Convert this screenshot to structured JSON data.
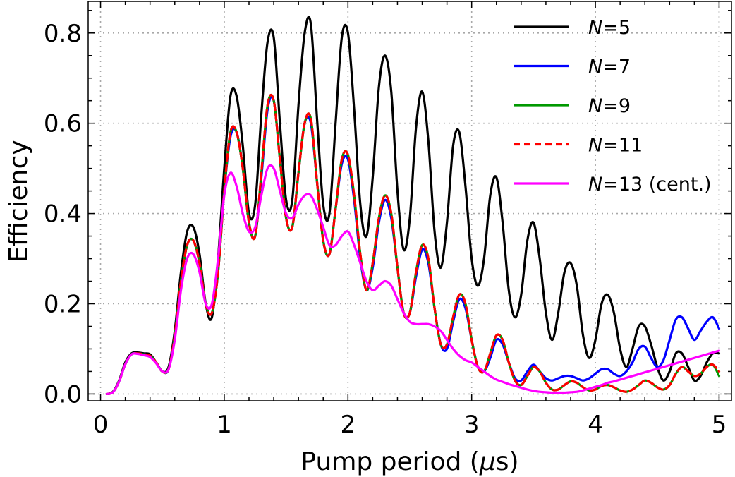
{
  "chart_data": {
    "type": "line",
    "title": "",
    "xlabel": "Pump period (",
    "xlabel_symbol": "μ",
    "xlabel_unit": "s)",
    "ylabel": "Efficiency",
    "xlim": [
      -0.1,
      5.1
    ],
    "ylim": [
      -0.015,
      0.87
    ],
    "xticks": [
      0,
      1,
      2,
      3,
      4,
      5
    ],
    "xtick_labels": [
      "0",
      "1",
      "2",
      "3",
      "4",
      "5"
    ],
    "yticks": [
      0.0,
      0.2,
      0.4,
      0.6,
      0.8
    ],
    "ytick_labels": [
      "0.0",
      "0.2",
      "0.4",
      "0.6",
      "0.8"
    ],
    "grid": true,
    "legend_position": "top-right",
    "x": [
      0.05,
      0.1,
      0.15,
      0.2,
      0.25,
      0.3,
      0.35,
      0.4,
      0.45,
      0.5,
      0.55,
      0.6,
      0.65,
      0.7,
      0.75,
      0.8,
      0.85,
      0.9,
      0.95,
      1.0,
      1.05,
      1.1,
      1.15,
      1.2,
      1.25,
      1.3,
      1.35,
      1.4,
      1.45,
      1.5,
      1.55,
      1.6,
      1.65,
      1.7,
      1.75,
      1.8,
      1.85,
      1.9,
      1.95,
      2.0,
      2.05,
      2.1,
      2.15,
      2.2,
      2.25,
      2.3,
      2.35,
      2.4,
      2.45,
      2.5,
      2.55,
      2.6,
      2.65,
      2.7,
      2.75,
      2.8,
      2.85,
      2.9,
      2.95,
      3.0,
      3.05,
      3.1,
      3.15,
      3.2,
      3.25,
      3.3,
      3.35,
      3.4,
      3.45,
      3.5,
      3.55,
      3.6,
      3.65,
      3.7,
      3.75,
      3.8,
      3.85,
      3.9,
      3.95,
      4.0,
      4.05,
      4.1,
      4.15,
      4.2,
      4.25,
      4.3,
      4.35,
      4.4,
      4.45,
      4.5,
      4.55,
      4.6,
      4.65,
      4.7,
      4.75,
      4.8,
      4.85,
      4.9,
      4.95,
      5.0
    ],
    "series": [
      {
        "name_italic": "N",
        "name_rest": "=5",
        "color": "#000000",
        "dash": "",
        "values": [
          0.0,
          0.005,
          0.03,
          0.07,
          0.09,
          0.092,
          0.09,
          0.088,
          0.07,
          0.05,
          0.06,
          0.14,
          0.27,
          0.36,
          0.37,
          0.31,
          0.2,
          0.17,
          0.3,
          0.5,
          0.66,
          0.66,
          0.55,
          0.4,
          0.42,
          0.62,
          0.78,
          0.79,
          0.6,
          0.43,
          0.43,
          0.64,
          0.8,
          0.82,
          0.61,
          0.42,
          0.4,
          0.6,
          0.79,
          0.8,
          0.63,
          0.42,
          0.35,
          0.48,
          0.68,
          0.75,
          0.67,
          0.45,
          0.32,
          0.39,
          0.59,
          0.67,
          0.56,
          0.36,
          0.28,
          0.38,
          0.55,
          0.58,
          0.46,
          0.3,
          0.24,
          0.3,
          0.44,
          0.48,
          0.38,
          0.23,
          0.17,
          0.22,
          0.34,
          0.38,
          0.3,
          0.18,
          0.12,
          0.18,
          0.27,
          0.29,
          0.24,
          0.13,
          0.08,
          0.12,
          0.2,
          0.22,
          0.18,
          0.1,
          0.06,
          0.1,
          0.15,
          0.15,
          0.11,
          0.06,
          0.03,
          0.05,
          0.09,
          0.09,
          0.06,
          0.03,
          0.04,
          0.07,
          0.09,
          0.09
        ]
      },
      {
        "name_italic": "N",
        "name_rest": "=7",
        "color": "#0000ff",
        "dash": "",
        "values": [
          0.0,
          0.004,
          0.028,
          0.066,
          0.088,
          0.09,
          0.088,
          0.085,
          0.07,
          0.05,
          0.055,
          0.13,
          0.25,
          0.33,
          0.34,
          0.29,
          0.2,
          0.18,
          0.27,
          0.45,
          0.57,
          0.58,
          0.5,
          0.38,
          0.35,
          0.48,
          0.63,
          0.65,
          0.52,
          0.39,
          0.37,
          0.49,
          0.6,
          0.6,
          0.47,
          0.34,
          0.31,
          0.41,
          0.51,
          0.52,
          0.43,
          0.3,
          0.23,
          0.28,
          0.38,
          0.43,
          0.39,
          0.28,
          0.18,
          0.18,
          0.26,
          0.32,
          0.29,
          0.19,
          0.11,
          0.1,
          0.16,
          0.21,
          0.19,
          0.12,
          0.06,
          0.05,
          0.08,
          0.12,
          0.11,
          0.07,
          0.035,
          0.03,
          0.05,
          0.065,
          0.05,
          0.035,
          0.03,
          0.035,
          0.04,
          0.04,
          0.035,
          0.03,
          0.035,
          0.045,
          0.055,
          0.055,
          0.045,
          0.04,
          0.05,
          0.07,
          0.1,
          0.105,
          0.08,
          0.06,
          0.075,
          0.12,
          0.165,
          0.17,
          0.145,
          0.12,
          0.14,
          0.16,
          0.17,
          0.145
        ]
      },
      {
        "name_italic": "N",
        "name_rest": "=9",
        "color": "#009900",
        "dash": "",
        "values": [
          0.0,
          0.004,
          0.028,
          0.066,
          0.088,
          0.09,
          0.088,
          0.085,
          0.07,
          0.05,
          0.055,
          0.13,
          0.25,
          0.33,
          0.34,
          0.29,
          0.2,
          0.18,
          0.27,
          0.45,
          0.58,
          0.58,
          0.5,
          0.38,
          0.35,
          0.49,
          0.64,
          0.65,
          0.52,
          0.39,
          0.37,
          0.49,
          0.6,
          0.61,
          0.47,
          0.34,
          0.31,
          0.41,
          0.52,
          0.53,
          0.44,
          0.31,
          0.23,
          0.29,
          0.39,
          0.44,
          0.4,
          0.28,
          0.18,
          0.18,
          0.27,
          0.33,
          0.3,
          0.19,
          0.11,
          0.11,
          0.17,
          0.22,
          0.2,
          0.12,
          0.06,
          0.05,
          0.09,
          0.13,
          0.12,
          0.07,
          0.03,
          0.02,
          0.04,
          0.06,
          0.05,
          0.025,
          0.01,
          0.01,
          0.02,
          0.028,
          0.025,
          0.015,
          0.008,
          0.01,
          0.018,
          0.02,
          0.015,
          0.008,
          0.005,
          0.01,
          0.02,
          0.03,
          0.025,
          0.015,
          0.01,
          0.02,
          0.045,
          0.06,
          0.05,
          0.04,
          0.045,
          0.06,
          0.065,
          0.04
        ]
      },
      {
        "name_italic": "N",
        "name_rest": "=11",
        "color": "#ff0000",
        "dash": "9 6",
        "values": [
          0.0,
          0.004,
          0.028,
          0.066,
          0.088,
          0.09,
          0.088,
          0.085,
          0.07,
          0.05,
          0.055,
          0.13,
          0.25,
          0.33,
          0.34,
          0.29,
          0.2,
          0.18,
          0.27,
          0.45,
          0.58,
          0.58,
          0.5,
          0.38,
          0.35,
          0.49,
          0.64,
          0.65,
          0.52,
          0.39,
          0.37,
          0.49,
          0.6,
          0.61,
          0.47,
          0.34,
          0.31,
          0.41,
          0.52,
          0.53,
          0.44,
          0.31,
          0.23,
          0.29,
          0.39,
          0.44,
          0.4,
          0.28,
          0.18,
          0.18,
          0.27,
          0.33,
          0.3,
          0.19,
          0.11,
          0.11,
          0.17,
          0.22,
          0.2,
          0.12,
          0.06,
          0.05,
          0.09,
          0.13,
          0.12,
          0.07,
          0.03,
          0.02,
          0.04,
          0.06,
          0.05,
          0.025,
          0.01,
          0.01,
          0.02,
          0.028,
          0.025,
          0.015,
          0.008,
          0.01,
          0.018,
          0.02,
          0.015,
          0.008,
          0.005,
          0.01,
          0.02,
          0.03,
          0.025,
          0.015,
          0.01,
          0.02,
          0.045,
          0.06,
          0.05,
          0.04,
          0.045,
          0.06,
          0.065,
          0.05
        ]
      },
      {
        "name_italic": "N",
        "name_rest": "=13 (cent.)",
        "color": "#ff00ff",
        "dash": "",
        "values": [
          0.0,
          0.004,
          0.028,
          0.066,
          0.088,
          0.089,
          0.086,
          0.082,
          0.068,
          0.05,
          0.055,
          0.12,
          0.23,
          0.3,
          0.31,
          0.27,
          0.2,
          0.2,
          0.3,
          0.44,
          0.49,
          0.46,
          0.4,
          0.36,
          0.37,
          0.44,
          0.5,
          0.5,
          0.45,
          0.4,
          0.39,
          0.42,
          0.44,
          0.44,
          0.41,
          0.37,
          0.33,
          0.33,
          0.35,
          0.36,
          0.33,
          0.29,
          0.25,
          0.23,
          0.24,
          0.25,
          0.24,
          0.21,
          0.18,
          0.16,
          0.155,
          0.155,
          0.155,
          0.15,
          0.14,
          0.12,
          0.1,
          0.085,
          0.075,
          0.07,
          0.06,
          0.05,
          0.04,
          0.032,
          0.027,
          0.022,
          0.018,
          0.014,
          0.01,
          0.007,
          0.005,
          0.004,
          0.003,
          0.003,
          0.003,
          0.004,
          0.005,
          0.008,
          0.012,
          0.016,
          0.02,
          0.025,
          0.028,
          0.032,
          0.036,
          0.04,
          0.044,
          0.048,
          0.052,
          0.056,
          0.06,
          0.064,
          0.068,
          0.072,
          0.076,
          0.08,
          0.084,
          0.088,
          0.092,
          0.096
        ]
      }
    ]
  }
}
